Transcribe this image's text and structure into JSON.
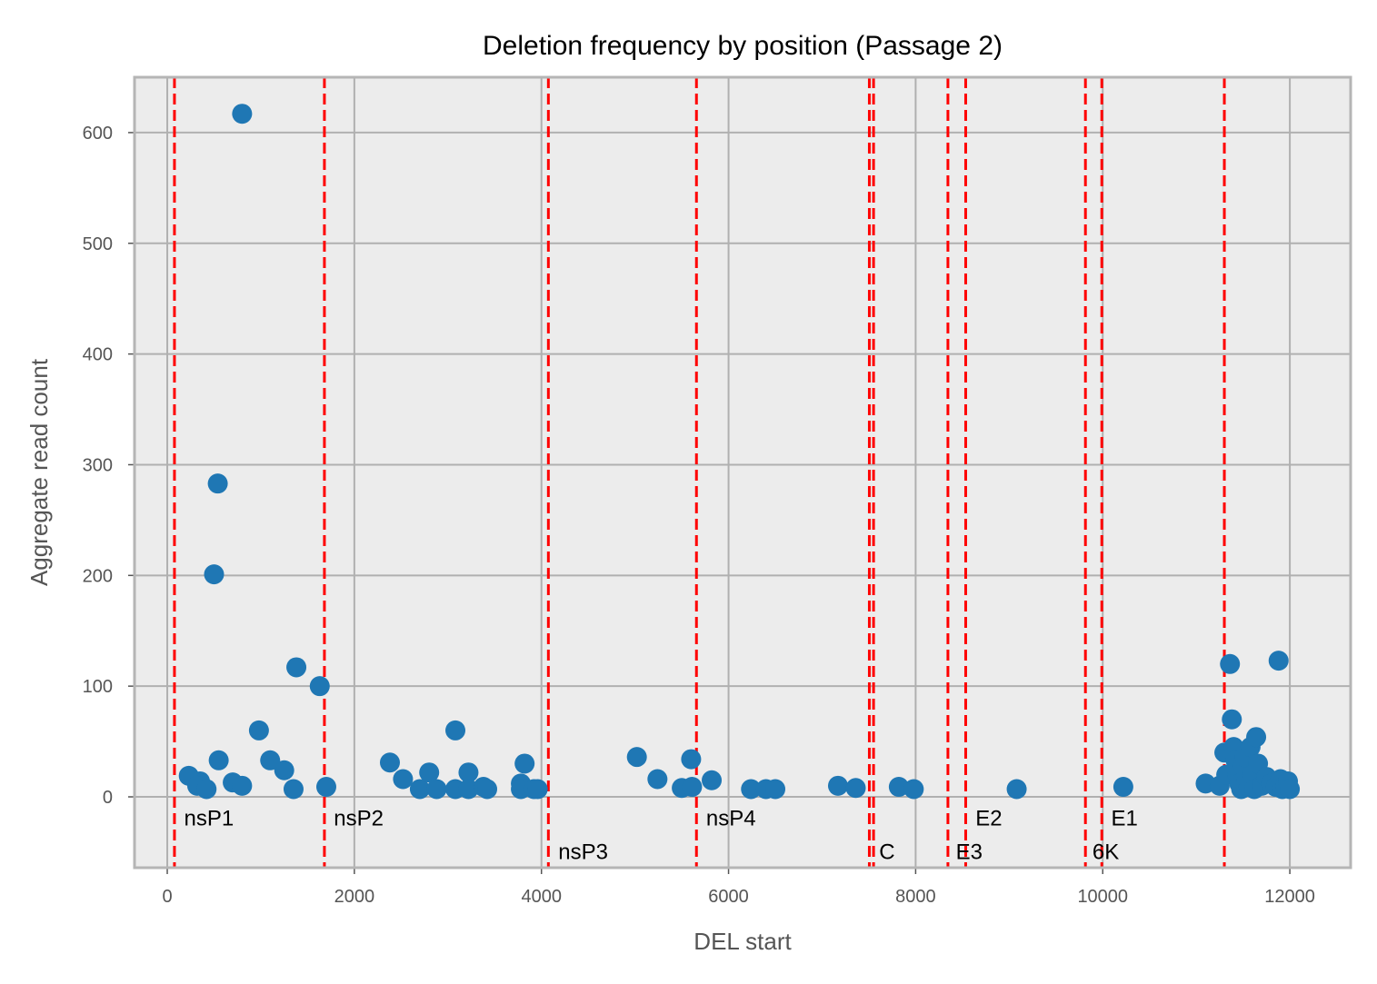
{
  "chart_data": {
    "type": "scatter",
    "title": "Deletion frequency by position (Passage 2)",
    "xlabel": "DEL start",
    "ylabel": "Aggregate read count",
    "xlim": [
      -350,
      12650
    ],
    "ylim": [
      -64,
      650
    ],
    "xticks": [
      0,
      2000,
      4000,
      6000,
      8000,
      10000,
      12000
    ],
    "xtick_labels": [
      "0",
      "2000",
      "4000",
      "6000",
      "8000",
      "10000",
      "12000"
    ],
    "yticks": [
      0,
      100,
      200,
      300,
      400,
      500,
      600
    ],
    "ytick_labels": [
      "0",
      "100",
      "200",
      "300",
      "400",
      "500",
      "600"
    ],
    "grid": true,
    "colors": {
      "points": "#1f77b4",
      "region_lines": "#ff0000",
      "plot_background": "#ececec",
      "grid": "#b0b0b0"
    },
    "region_boundaries": [
      77,
      1680,
      4074,
      5657,
      7505,
      7550,
      8345,
      8535,
      9815,
      9990,
      11300
    ],
    "region_labels": [
      {
        "text": "nsP1",
        "x": 180,
        "y": -26
      },
      {
        "text": "nsP2",
        "x": 1780,
        "y": -26
      },
      {
        "text": "nsP3",
        "x": 4180,
        "y": -56
      },
      {
        "text": "nsP4",
        "x": 5760,
        "y": -26
      },
      {
        "text": "C",
        "x": 7610,
        "y": -56
      },
      {
        "text": "E3",
        "x": 8430,
        "y": -56
      },
      {
        "text": "E2",
        "x": 8640,
        "y": -26
      },
      {
        "text": "6K",
        "x": 9890,
        "y": -56
      },
      {
        "text": "E1",
        "x": 10090,
        "y": -26
      }
    ],
    "points": [
      [
        800,
        617
      ],
      [
        540,
        283
      ],
      [
        500,
        201
      ],
      [
        1380,
        117
      ],
      [
        1630,
        100
      ],
      [
        980,
        60
      ],
      [
        550,
        33
      ],
      [
        1100,
        33
      ],
      [
        1250,
        24
      ],
      [
        230,
        19
      ],
      [
        350,
        14
      ],
      [
        320,
        10
      ],
      [
        420,
        7
      ],
      [
        700,
        13
      ],
      [
        800,
        10
      ],
      [
        1350,
        7
      ],
      [
        1700,
        9
      ],
      [
        2380,
        31
      ],
      [
        2520,
        16
      ],
      [
        2700,
        7
      ],
      [
        2800,
        22
      ],
      [
        2880,
        7
      ],
      [
        3080,
        60
      ],
      [
        3080,
        7
      ],
      [
        3220,
        22
      ],
      [
        3220,
        7
      ],
      [
        3380,
        9
      ],
      [
        3420,
        7
      ],
      [
        3780,
        12
      ],
      [
        3820,
        30
      ],
      [
        3780,
        7
      ],
      [
        3920,
        7
      ],
      [
        3960,
        7
      ],
      [
        5020,
        36
      ],
      [
        5240,
        16
      ],
      [
        5500,
        8
      ],
      [
        5600,
        34
      ],
      [
        5610,
        9
      ],
      [
        5820,
        15
      ],
      [
        6240,
        7
      ],
      [
        6400,
        7
      ],
      [
        6500,
        7
      ],
      [
        7170,
        10
      ],
      [
        7360,
        8
      ],
      [
        7820,
        9
      ],
      [
        7980,
        7
      ],
      [
        9080,
        7
      ],
      [
        10220,
        9
      ],
      [
        11100,
        12
      ],
      [
        11250,
        10
      ],
      [
        11300,
        40
      ],
      [
        11320,
        20
      ],
      [
        11360,
        120
      ],
      [
        11380,
        70
      ],
      [
        11400,
        45
      ],
      [
        11420,
        33
      ],
      [
        11440,
        20
      ],
      [
        11460,
        12
      ],
      [
        11480,
        7
      ],
      [
        11500,
        28
      ],
      [
        11520,
        36
      ],
      [
        11540,
        15
      ],
      [
        11560,
        9
      ],
      [
        11580,
        45
      ],
      [
        11600,
        20
      ],
      [
        11620,
        7
      ],
      [
        11640,
        54
      ],
      [
        11660,
        30
      ],
      [
        11700,
        10
      ],
      [
        11750,
        18
      ],
      [
        11800,
        12
      ],
      [
        11850,
        9
      ],
      [
        11880,
        123
      ],
      [
        11900,
        16
      ],
      [
        11920,
        7
      ],
      [
        11950,
        10
      ],
      [
        11980,
        14
      ],
      [
        12000,
        7
      ]
    ]
  }
}
